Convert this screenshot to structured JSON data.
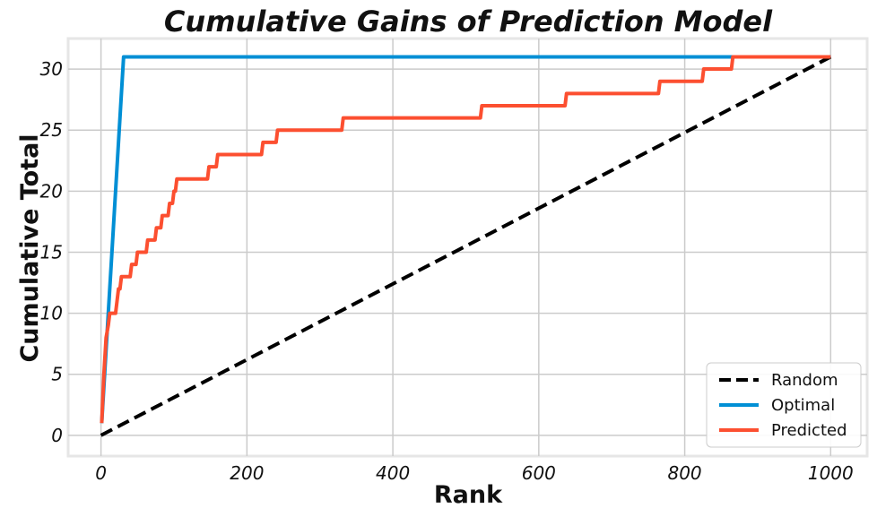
{
  "chart_data": {
    "type": "line",
    "title": "Cumulative Gains of Prediction Model",
    "xlabel": "Rank",
    "ylabel": "Cumulative Total",
    "xlim": [
      -45,
      1050
    ],
    "ylim": [
      -1.7,
      32.5
    ],
    "xticks": [
      0,
      200,
      400,
      600,
      800,
      1000
    ],
    "yticks": [
      0,
      5,
      10,
      15,
      20,
      25,
      30
    ],
    "grid": true,
    "legend_position": "bottom-right",
    "series": [
      {
        "name": "Random",
        "color": "#000000",
        "style": "dashed",
        "x": [
          0,
          1000
        ],
        "y": [
          0,
          31
        ]
      },
      {
        "name": "Optimal",
        "color": "#008fd5",
        "style": "solid",
        "x": [
          1,
          31,
          1000
        ],
        "y": [
          1,
          31,
          31
        ]
      },
      {
        "name": "Predicted",
        "color": "#fc4f30",
        "style": "solid",
        "x": [
          1,
          4,
          7,
          10,
          12,
          15,
          20,
          22,
          24,
          26,
          28,
          40,
          42,
          48,
          50,
          62,
          64,
          74,
          76,
          82,
          84,
          86,
          88,
          92,
          94,
          98,
          100,
          102,
          104,
          146,
          148,
          158,
          160,
          220,
          222,
          240,
          242,
          330,
          332,
          520,
          522,
          636,
          638,
          764,
          766,
          824,
          826,
          864,
          866,
          1000
        ],
        "y": [
          1,
          5,
          8,
          9,
          10,
          10,
          10,
          11,
          12,
          12,
          13,
          13,
          14,
          14,
          15,
          15,
          16,
          16,
          17,
          17,
          18,
          18,
          18,
          18,
          19,
          19,
          20,
          20,
          21,
          21,
          22,
          22,
          23,
          23,
          24,
          24,
          25,
          25,
          26,
          26,
          27,
          27,
          28,
          28,
          29,
          29,
          30,
          30,
          31,
          31
        ]
      }
    ]
  }
}
